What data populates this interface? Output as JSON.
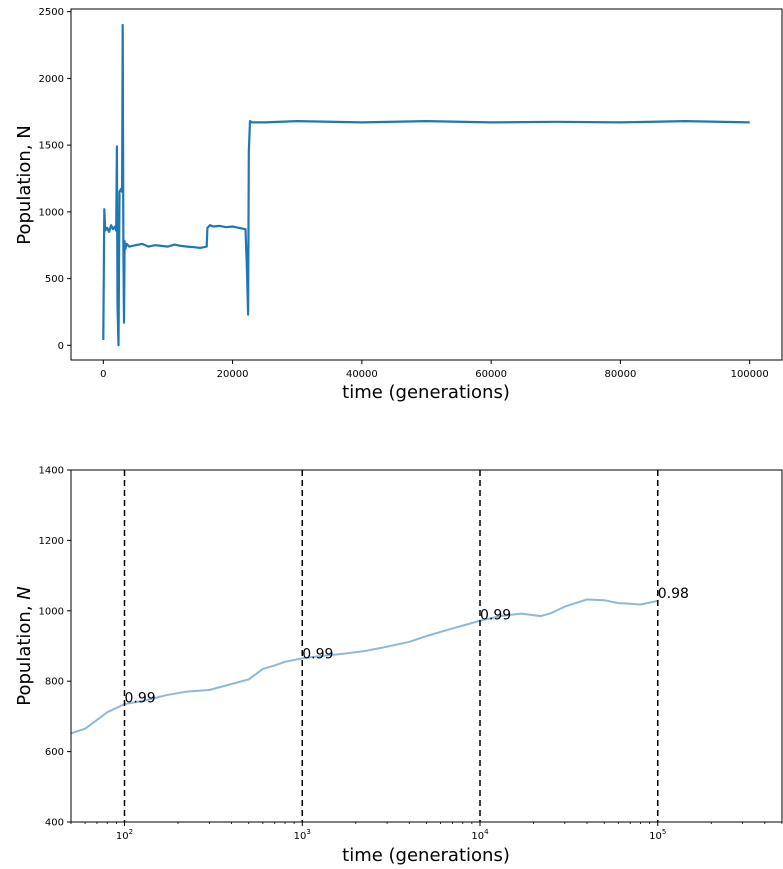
{
  "chart_data": [
    {
      "type": "line",
      "xlabel": "time (generations)",
      "ylabel": "Population, N",
      "xlim": [
        -5000,
        105000
      ],
      "ylim": [
        -110,
        2520
      ],
      "xticks": [
        0,
        20000,
        40000,
        60000,
        80000,
        100000
      ],
      "xtick_labels": [
        "0",
        "20000",
        "40000",
        "60000",
        "80000",
        "100000"
      ],
      "yticks": [
        0,
        500,
        1000,
        1500,
        2000,
        2500
      ],
      "ytick_labels": [
        "0",
        "500",
        "1000",
        "1500",
        "2000",
        "2500"
      ],
      "grid": false,
      "series": [
        {
          "color": "#1f77b4",
          "x": [
            0,
            150,
            300,
            600,
            900,
            1200,
            1500,
            1800,
            2000,
            2100,
            2200,
            2350,
            2500,
            2700,
            2900,
            3000,
            3100,
            3200,
            3300,
            3400,
            3600,
            4000,
            5000,
            6000,
            7000,
            8000,
            9000,
            10000,
            11000,
            12000,
            13000,
            14000,
            15000,
            16000,
            16100,
            16500,
            17000,
            18000,
            19000,
            20000,
            21000,
            22000,
            22200,
            22400,
            22500,
            22700,
            23000,
            25000,
            30000,
            40000,
            50000,
            60000,
            70000,
            80000,
            90000,
            100000
          ],
          "y": [
            40,
            1020,
            860,
            880,
            850,
            900,
            870,
            890,
            860,
            1490,
            300,
            0,
            1150,
            1170,
            1150,
            2400,
            700,
            170,
            780,
            720,
            760,
            740,
            750,
            760,
            740,
            750,
            745,
            740,
            755,
            745,
            740,
            735,
            730,
            740,
            880,
            900,
            890,
            895,
            885,
            890,
            880,
            870,
            600,
            230,
            1450,
            1680,
            1670,
            1670,
            1680,
            1670,
            1680,
            1670,
            1675,
            1670,
            1680,
            1670
          ]
        }
      ]
    },
    {
      "type": "line",
      "xlabel": "time (generations)",
      "ylabel": "Population, N",
      "xscale": "log",
      "xlim": [
        50,
        500000
      ],
      "ylim": [
        400,
        1400
      ],
      "xticks": [
        100,
        1000,
        10000,
        100000
      ],
      "xtick_labels": [
        {
          "base": "10",
          "exp": "2"
        },
        {
          "base": "10",
          "exp": "3"
        },
        {
          "base": "10",
          "exp": "4"
        },
        {
          "base": "10",
          "exp": "5"
        }
      ],
      "yticks": [
        400,
        600,
        800,
        1000,
        1200,
        1400
      ],
      "ytick_labels": [
        "400",
        "600",
        "800",
        "1000",
        "1200",
        "1400"
      ],
      "grid": false,
      "series": [
        {
          "color": "#8fb8d8",
          "x": [
            50,
            60,
            70,
            80,
            100,
            130,
            170,
            220,
            300,
            400,
            500,
            600,
            700,
            800,
            1000,
            1300,
            1700,
            2200,
            3000,
            4000,
            5000,
            6000,
            7000,
            8000,
            10000,
            13000,
            17000,
            22000,
            25000,
            30000,
            40000,
            50000,
            60000,
            70000,
            80000,
            100000
          ],
          "y": [
            652,
            665,
            690,
            712,
            735,
            745,
            760,
            770,
            775,
            792,
            805,
            835,
            845,
            855,
            865,
            872,
            878,
            885,
            898,
            912,
            928,
            940,
            950,
            958,
            972,
            985,
            992,
            985,
            993,
            1012,
            1032,
            1030,
            1022,
            1020,
            1018,
            1028
          ]
        }
      ],
      "vlines": [
        100,
        1000,
        10000,
        100000
      ],
      "annotations": [
        {
          "x": 100,
          "y": 740,
          "text": "0.99"
        },
        {
          "x": 1000,
          "y": 864,
          "text": "0.99"
        },
        {
          "x": 10000,
          "y": 975,
          "text": "0.99"
        },
        {
          "x": 100000,
          "y": 1036,
          "text": "0.98"
        }
      ]
    }
  ]
}
